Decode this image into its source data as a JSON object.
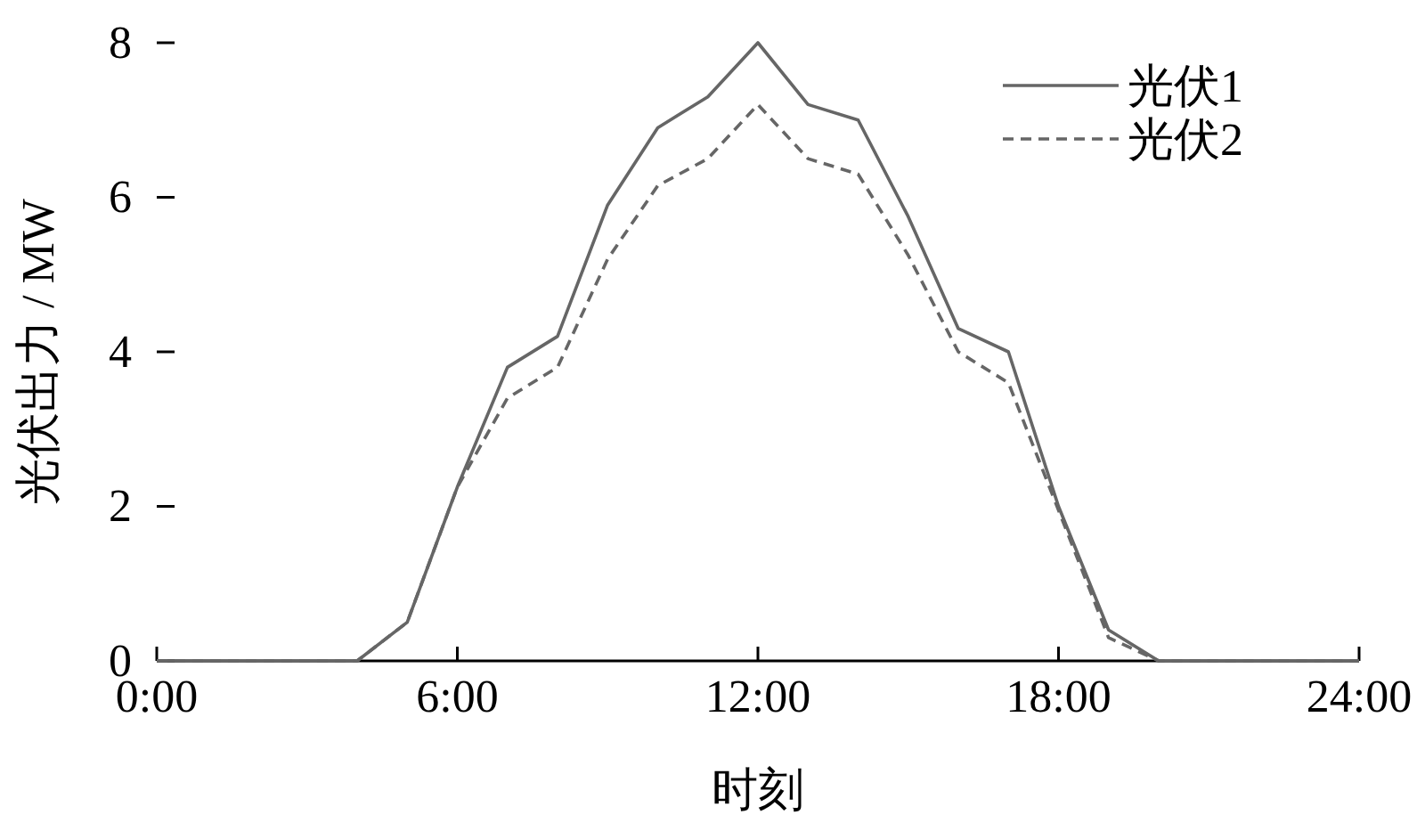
{
  "chart_data": {
    "type": "line",
    "xlabel": "时刻",
    "ylabel": "光伏出力 / MW",
    "x": [
      0,
      1,
      2,
      3,
      4,
      5,
      6,
      7,
      8,
      9,
      10,
      11,
      12,
      13,
      14,
      15,
      16,
      17,
      18,
      19,
      20,
      21,
      22,
      23,
      24
    ],
    "xlim": [
      0,
      24
    ],
    "xticks": [
      {
        "value": 0,
        "label": "0:00"
      },
      {
        "value": 6,
        "label": "6:00"
      },
      {
        "value": 12,
        "label": "12:00"
      },
      {
        "value": 18,
        "label": "18:00"
      },
      {
        "value": 24,
        "label": "24:00"
      }
    ],
    "ylim": [
      0,
      8
    ],
    "yticks": [
      0,
      2,
      4,
      6,
      8
    ],
    "series": [
      {
        "name": "光伏1",
        "color": "#666666",
        "line_style": "solid",
        "values": [
          0,
          0,
          0,
          0,
          0,
          0.5,
          2.25,
          3.8,
          4.2,
          5.9,
          6.9,
          7.3,
          8.0,
          7.2,
          7.0,
          5.75,
          4.3,
          4.0,
          2.0,
          0.4,
          0,
          0,
          0,
          0,
          0
        ]
      },
      {
        "name": "光伏2",
        "color": "#666666",
        "line_style": "dashed",
        "values": [
          0,
          0,
          0,
          0,
          0,
          0.5,
          2.25,
          3.4,
          3.8,
          5.2,
          6.15,
          6.5,
          7.2,
          6.5,
          6.3,
          5.25,
          4.0,
          3.6,
          1.95,
          0.3,
          0,
          0,
          0,
          0,
          0
        ]
      }
    ],
    "legend": "top right",
    "marker": "none"
  }
}
